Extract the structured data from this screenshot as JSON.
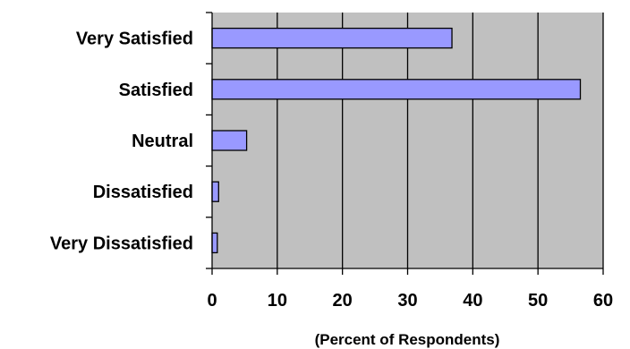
{
  "chart_data": {
    "type": "bar",
    "orientation": "horizontal",
    "categories": [
      "Very Satisfied",
      "Satisfied",
      "Neutral",
      "Dissatisfied",
      "Very Dissatisfied"
    ],
    "values": [
      36.8,
      56.5,
      5.3,
      1.0,
      0.8
    ],
    "xlabel": "(Percent of Respondents)",
    "ylabel": "",
    "xlim": [
      0,
      60
    ],
    "xticks": [
      "0",
      "10",
      "20",
      "30",
      "40",
      "50",
      "60"
    ],
    "grid": "vertical",
    "legend": "none",
    "colors": {
      "bar_fill": "#9999ff",
      "plot_background": "#c0c0c0",
      "grid": "#000000"
    }
  }
}
